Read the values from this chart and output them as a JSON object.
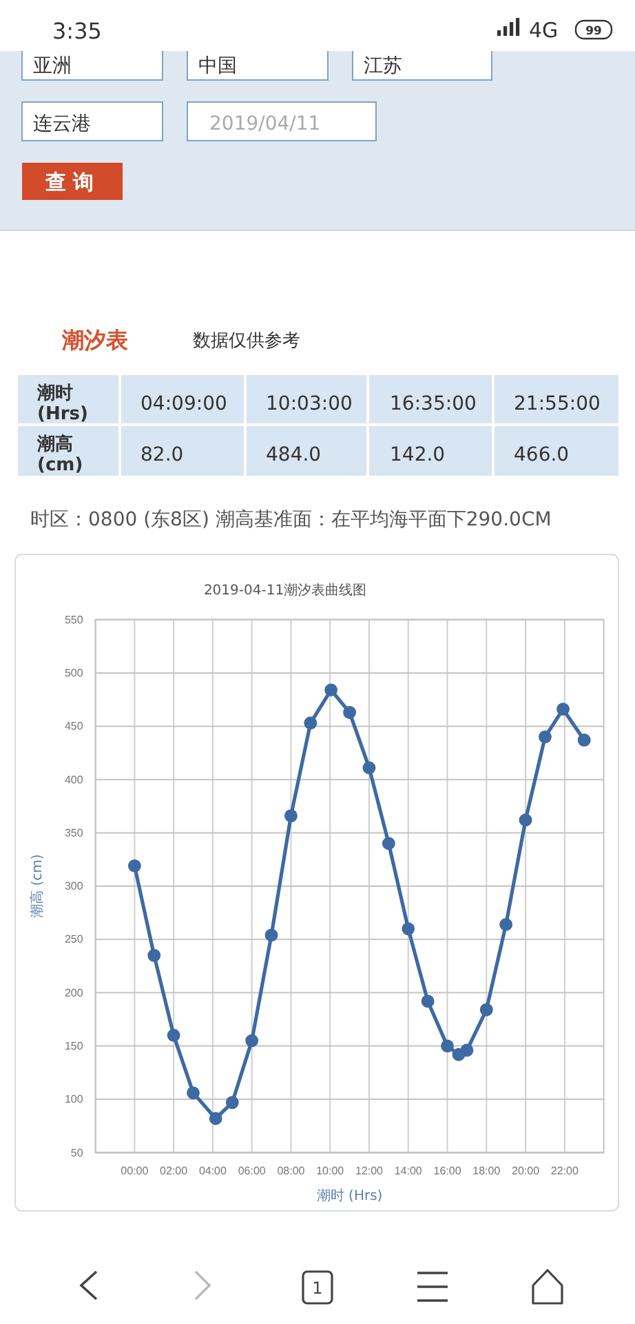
{
  "chart_data": {
    "type": "line",
    "title": "2019-04-11潮汐表曲线图",
    "xlabel": "潮时 (Hrs)",
    "ylabel": "潮高 (cm)",
    "x": [
      0,
      1,
      2,
      3,
      4.15,
      5,
      6,
      7,
      8,
      9,
      10.05,
      11,
      12,
      13,
      14,
      15,
      16,
      16.58,
      17,
      18,
      19,
      20,
      21,
      21.92,
      23
    ],
    "values": [
      319,
      235,
      160,
      106,
      82,
      97,
      155,
      254,
      366,
      453,
      484,
      463,
      411,
      340,
      260,
      192,
      150,
      142,
      146,
      184,
      264,
      362,
      440,
      466,
      437
    ],
    "color": "#3d6aa3",
    "marker": "circle",
    "xlim": [
      -2,
      24
    ],
    "xticks": [
      {
        "value": 0,
        "label": "00:00"
      },
      {
        "value": 2,
        "label": "02:00"
      },
      {
        "value": 4,
        "label": "04:00"
      },
      {
        "value": 6,
        "label": "06:00"
      },
      {
        "value": 8,
        "label": "08:00"
      },
      {
        "value": 10,
        "label": "10:00"
      },
      {
        "value": 12,
        "label": "12:00"
      },
      {
        "value": 14,
        "label": "14:00"
      },
      {
        "value": 16,
        "label": "16:00"
      },
      {
        "value": 18,
        "label": "18:00"
      },
      {
        "value": 20,
        "label": "20:00"
      },
      {
        "value": 22,
        "label": "22:00"
      }
    ],
    "ylim": [
      50,
      550
    ],
    "yticks": [
      50,
      100,
      150,
      200,
      250,
      300,
      350,
      400,
      450,
      500,
      550
    ],
    "grid": true,
    "annotations": [
      "3:35",
      "4G",
      "99",
      "亚洲",
      "中国",
      "江苏",
      "连云港",
      "2019/04/11",
      "查询",
      "潮汐表",
      "数据仅供参考",
      "潮时 (Hrs)",
      "04:09:00",
      "10:03:00",
      "16:35:00",
      "21:55:00",
      "潮高 (cm)",
      "82.0",
      "484.0",
      "142.0",
      "466.0",
      "时区：0800 (东8区) 潮高基准面：在平均海平面下290.0CM",
      "1"
    ]
  }
}
